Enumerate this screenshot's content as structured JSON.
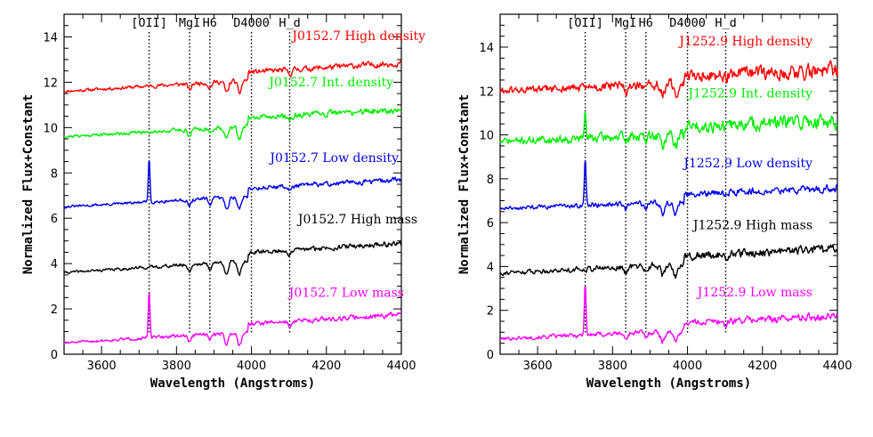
{
  "chart_data": [
    {
      "type": "line",
      "xlabel": "Wavelength (Angstroms)",
      "ylabel": "Normalized Flux+Constant",
      "xlim": [
        3500,
        4400
      ],
      "ylim": [
        0,
        15
      ],
      "xticks": [
        3600,
        3800,
        4000,
        4200,
        4400
      ],
      "yticks": [
        0,
        2,
        4,
        6,
        8,
        10,
        12,
        14
      ],
      "grid": false,
      "feature_lines": [
        {
          "label": "[OII]",
          "x": 3727
        },
        {
          "label": "MgI",
          "x": 3835
        },
        {
          "label": "H6",
          "x": 3889
        },
        {
          "label": "D4000",
          "x": 4000
        },
        {
          "label": "H_d",
          "x": 4102
        }
      ],
      "series": [
        {
          "name": "J0152.7 High density",
          "color": "#ff0000",
          "base": 11.6,
          "slope": 0.9,
          "noise": 0.12,
          "emission": 0,
          "seed": 11,
          "x": [
            3500,
            3600,
            3700,
            3800,
            3900,
            3950,
            4000,
            4100,
            4200,
            4300,
            4400
          ],
          "y": [
            11.7,
            11.6,
            11.65,
            11.7,
            11.8,
            11.5,
            12.3,
            12.2,
            12.2,
            12.35,
            12.6
          ]
        },
        {
          "name": "J0152.7 Int. density",
          "color": "#00ee00",
          "base": 9.6,
          "slope": 0.85,
          "noise": 0.12,
          "emission": 0,
          "seed": 21,
          "x": [
            3500,
            3600,
            3700,
            3800,
            3900,
            3950,
            4000,
            4100,
            4200,
            4300,
            4400
          ],
          "y": [
            9.7,
            9.6,
            9.8,
            9.95,
            9.9,
            9.6,
            10.3,
            10.3,
            10.25,
            10.35,
            10.5
          ]
        },
        {
          "name": "J0152.7 Low density",
          "color": "#0000ee",
          "base": 6.5,
          "slope": 0.85,
          "noise": 0.1,
          "emission": 2.0,
          "seed": 31,
          "x": [
            3500,
            3600,
            3700,
            3727,
            3800,
            3900,
            3950,
            4000,
            4100,
            4200,
            4300,
            4400
          ],
          "y": [
            6.5,
            6.55,
            6.7,
            8.5,
            6.85,
            6.9,
            6.6,
            7.05,
            7.1,
            7.15,
            7.2,
            7.35
          ]
        },
        {
          "name": "J0152.7 High mass",
          "color": "#000000",
          "base": 3.6,
          "slope": 0.95,
          "noise": 0.1,
          "emission": 0,
          "seed": 41,
          "x": [
            3500,
            3600,
            3700,
            3800,
            3900,
            3950,
            4000,
            4100,
            4200,
            4300,
            4400
          ],
          "y": [
            3.6,
            3.6,
            3.7,
            3.85,
            3.95,
            3.3,
            4.3,
            4.35,
            4.3,
            4.4,
            4.55
          ]
        },
        {
          "name": "J0152.7 Low mass",
          "color": "#ff00ff",
          "base": 0.5,
          "slope": 0.9,
          "noise": 0.1,
          "emission": 2.1,
          "seed": 51,
          "x": [
            3500,
            3600,
            3700,
            3727,
            3800,
            3900,
            3950,
            4000,
            4100,
            4200,
            4300,
            4400
          ],
          "y": [
            0.5,
            0.6,
            0.75,
            2.6,
            0.9,
            0.95,
            0.6,
            1.2,
            1.2,
            1.2,
            1.25,
            1.4
          ]
        }
      ]
    },
    {
      "type": "line",
      "xlabel": "Wavelength (Angstroms)",
      "ylabel": "Normalized Flux+Constant",
      "xlim": [
        3500,
        4400
      ],
      "ylim": [
        0,
        15.5
      ],
      "xticks": [
        3600,
        3800,
        4000,
        4200,
        4400
      ],
      "yticks": [
        0,
        2,
        4,
        6,
        8,
        10,
        12,
        14
      ],
      "grid": false,
      "feature_lines": [
        {
          "label": "[OII]",
          "x": 3727
        },
        {
          "label": "MgI",
          "x": 3835
        },
        {
          "label": "H6",
          "x": 3889
        },
        {
          "label": "D4000",
          "x": 4000
        },
        {
          "label": "H_d",
          "x": 4102
        }
      ],
      "series": [
        {
          "name": "J1252.9 High density",
          "color": "#ff0000",
          "base": 12.0,
          "slope": 0.6,
          "noise": 0.3,
          "emission": 0,
          "seed": 61,
          "x": [
            3500,
            3600,
            3700,
            3800,
            3900,
            4000,
            4100,
            4200,
            4300,
            4400
          ],
          "y": [
            12.0,
            12.0,
            12.1,
            12.2,
            12.3,
            12.5,
            12.5,
            12.6,
            12.8,
            13.0
          ]
        },
        {
          "name": "J1252.9 Int. density",
          "color": "#00ee00",
          "base": 9.7,
          "slope": 0.6,
          "noise": 0.3,
          "emission": 1.2,
          "seed": 71,
          "x": [
            3500,
            3600,
            3700,
            3727,
            3800,
            3900,
            4000,
            4100,
            4200,
            4300,
            4400
          ],
          "y": [
            9.7,
            9.75,
            9.8,
            11.0,
            9.9,
            10.0,
            10.2,
            10.2,
            10.3,
            10.4,
            10.6
          ]
        },
        {
          "name": "J1252.9 Low density",
          "color": "#0000ee",
          "base": 6.65,
          "slope": 0.55,
          "noise": 0.16,
          "emission": 2.1,
          "seed": 81,
          "x": [
            3500,
            3600,
            3700,
            3727,
            3800,
            3900,
            4000,
            4100,
            4200,
            4300,
            4400
          ],
          "y": [
            6.65,
            6.7,
            6.75,
            8.8,
            6.8,
            6.9,
            7.0,
            7.0,
            7.1,
            7.2,
            7.4
          ]
        },
        {
          "name": "J1252.9 High mass",
          "color": "#000000",
          "base": 3.7,
          "slope": 0.75,
          "noise": 0.18,
          "emission": 0,
          "seed": 91,
          "x": [
            3500,
            3600,
            3700,
            3800,
            3900,
            4000,
            4100,
            4200,
            4300,
            4400
          ],
          "y": [
            3.7,
            3.7,
            3.8,
            3.9,
            4.0,
            4.2,
            4.2,
            4.25,
            4.35,
            4.5
          ]
        },
        {
          "name": "J1252.9 Low mass",
          "color": "#ff00ff",
          "base": 0.7,
          "slope": 0.7,
          "noise": 0.15,
          "emission": 2.5,
          "seed": 101,
          "x": [
            3500,
            3600,
            3700,
            3727,
            3800,
            3900,
            4000,
            4100,
            4200,
            4300,
            4400
          ],
          "y": [
            0.7,
            0.7,
            0.8,
            3.2,
            0.9,
            1.0,
            1.1,
            1.0,
            1.2,
            1.3,
            1.45
          ]
        }
      ]
    }
  ]
}
